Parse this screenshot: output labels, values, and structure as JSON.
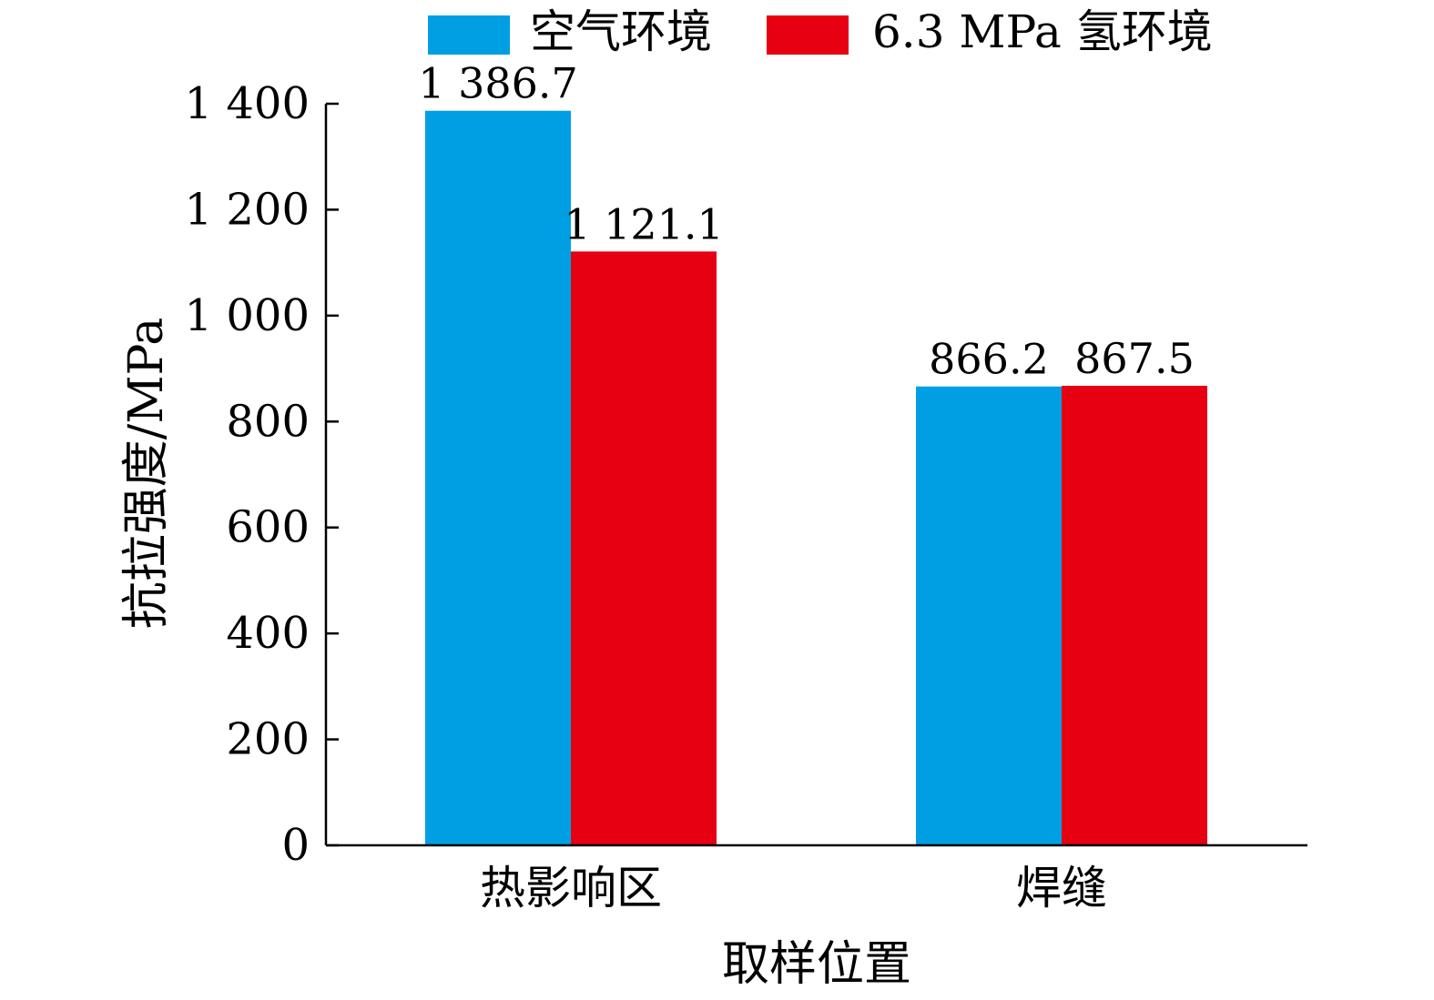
{
  "chart_data": {
    "type": "bar",
    "title": "",
    "xlabel": "取样位置",
    "ylabel": "抗拉强度/MPa",
    "categories": [
      "热影响区",
      "焊缝"
    ],
    "series": [
      {
        "name": "空气环境",
        "color": "#009FE3",
        "values": [
          1386.7,
          866.2
        ],
        "labels": [
          "1 386.7",
          "866.2"
        ]
      },
      {
        "name": "6.3 MPa 氢环境",
        "color": "#E60012",
        "values": [
          1121.1,
          867.5
        ],
        "labels": [
          "1 121.1",
          "867.5"
        ]
      }
    ],
    "ylim": [
      0,
      1400
    ],
    "yticks": [
      {
        "value": 0,
        "label": "0"
      },
      {
        "value": 200,
        "label": "200"
      },
      {
        "value": 400,
        "label": "400"
      },
      {
        "value": 600,
        "label": "600"
      },
      {
        "value": 800,
        "label": "800"
      },
      {
        "value": 1000,
        "label": "1 000"
      },
      {
        "value": 1200,
        "label": "1 200"
      },
      {
        "value": 1400,
        "label": "1 400"
      }
    ],
    "grid": false,
    "legend_position": "top"
  }
}
